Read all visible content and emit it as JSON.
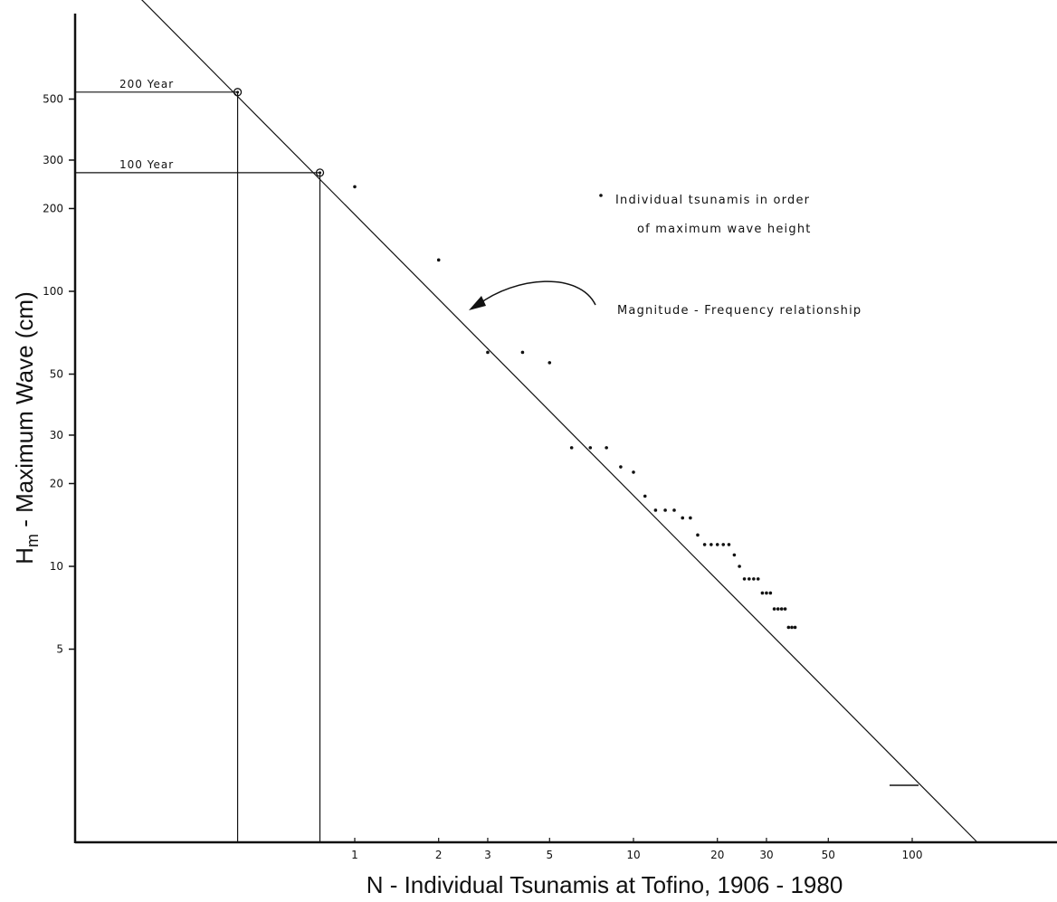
{
  "chart_data": {
    "type": "scatter",
    "title": "",
    "xlabel": "N - Individual Tsunamis at Tofino, 1906 - 1980",
    "ylabel_main": "H",
    "ylabel_sub": "m",
    "ylabel_rest": " - Maximum Wave (cm)",
    "x_scale": "log",
    "y_scale": "log",
    "xlim": [
      0.1,
      250
    ],
    "ylim": [
      1,
      1200
    ],
    "x_ticks": [
      1,
      2,
      3,
      5,
      10,
      20,
      30,
      50,
      100
    ],
    "x_tick_labels": [
      "1",
      "2",
      "3",
      "5",
      "10",
      "20",
      "30",
      "50",
      "100"
    ],
    "y_ticks": [
      5,
      10,
      20,
      30,
      50,
      100,
      200,
      300,
      500
    ],
    "y_tick_labels": [
      "5",
      "10",
      "20",
      "30",
      "50",
      "100",
      "200",
      "300",
      "500"
    ],
    "grid": false,
    "series": [
      {
        "name": "Individual tsunamis in order of maximum wave height",
        "points": [
          [
            1,
            240
          ],
          [
            2,
            130
          ],
          [
            3,
            60
          ],
          [
            4,
            60
          ],
          [
            5,
            55
          ],
          [
            6,
            27
          ],
          [
            7,
            27
          ],
          [
            8,
            27
          ],
          [
            9,
            23
          ],
          [
            10,
            22
          ],
          [
            11,
            18
          ],
          [
            12,
            16
          ],
          [
            13,
            16
          ],
          [
            14,
            16
          ],
          [
            15,
            15
          ],
          [
            16,
            15
          ],
          [
            17,
            13
          ],
          [
            18,
            12
          ],
          [
            19,
            12
          ],
          [
            20,
            12
          ],
          [
            21,
            12
          ],
          [
            22,
            12
          ],
          [
            23,
            11
          ],
          [
            24,
            10
          ],
          [
            25,
            9
          ],
          [
            26,
            9
          ],
          [
            27,
            9
          ],
          [
            28,
            9
          ],
          [
            29,
            8
          ],
          [
            30,
            8
          ],
          [
            31,
            8
          ],
          [
            32,
            7
          ],
          [
            33,
            7
          ],
          [
            34,
            7
          ],
          [
            35,
            7
          ],
          [
            36,
            6
          ],
          [
            37,
            6
          ],
          [
            38,
            6
          ]
        ]
      },
      {
        "name": "Magnitude - Frequency relationship",
        "type": "line",
        "points": [
          [
            0.1,
            2000
          ],
          [
            170,
            1
          ]
        ]
      }
    ],
    "annotations": [
      {
        "label": "200 Year",
        "x": 0.38,
        "y": 530
      },
      {
        "label": "100 Year",
        "x": 0.75,
        "y": 270
      }
    ],
    "legend": {
      "dot_label_line1": "Individual tsunamis in order",
      "dot_label_line2": "of maximum wave height",
      "line_label": "Magnitude - Frequency relationship",
      "placement": "top-right"
    }
  }
}
